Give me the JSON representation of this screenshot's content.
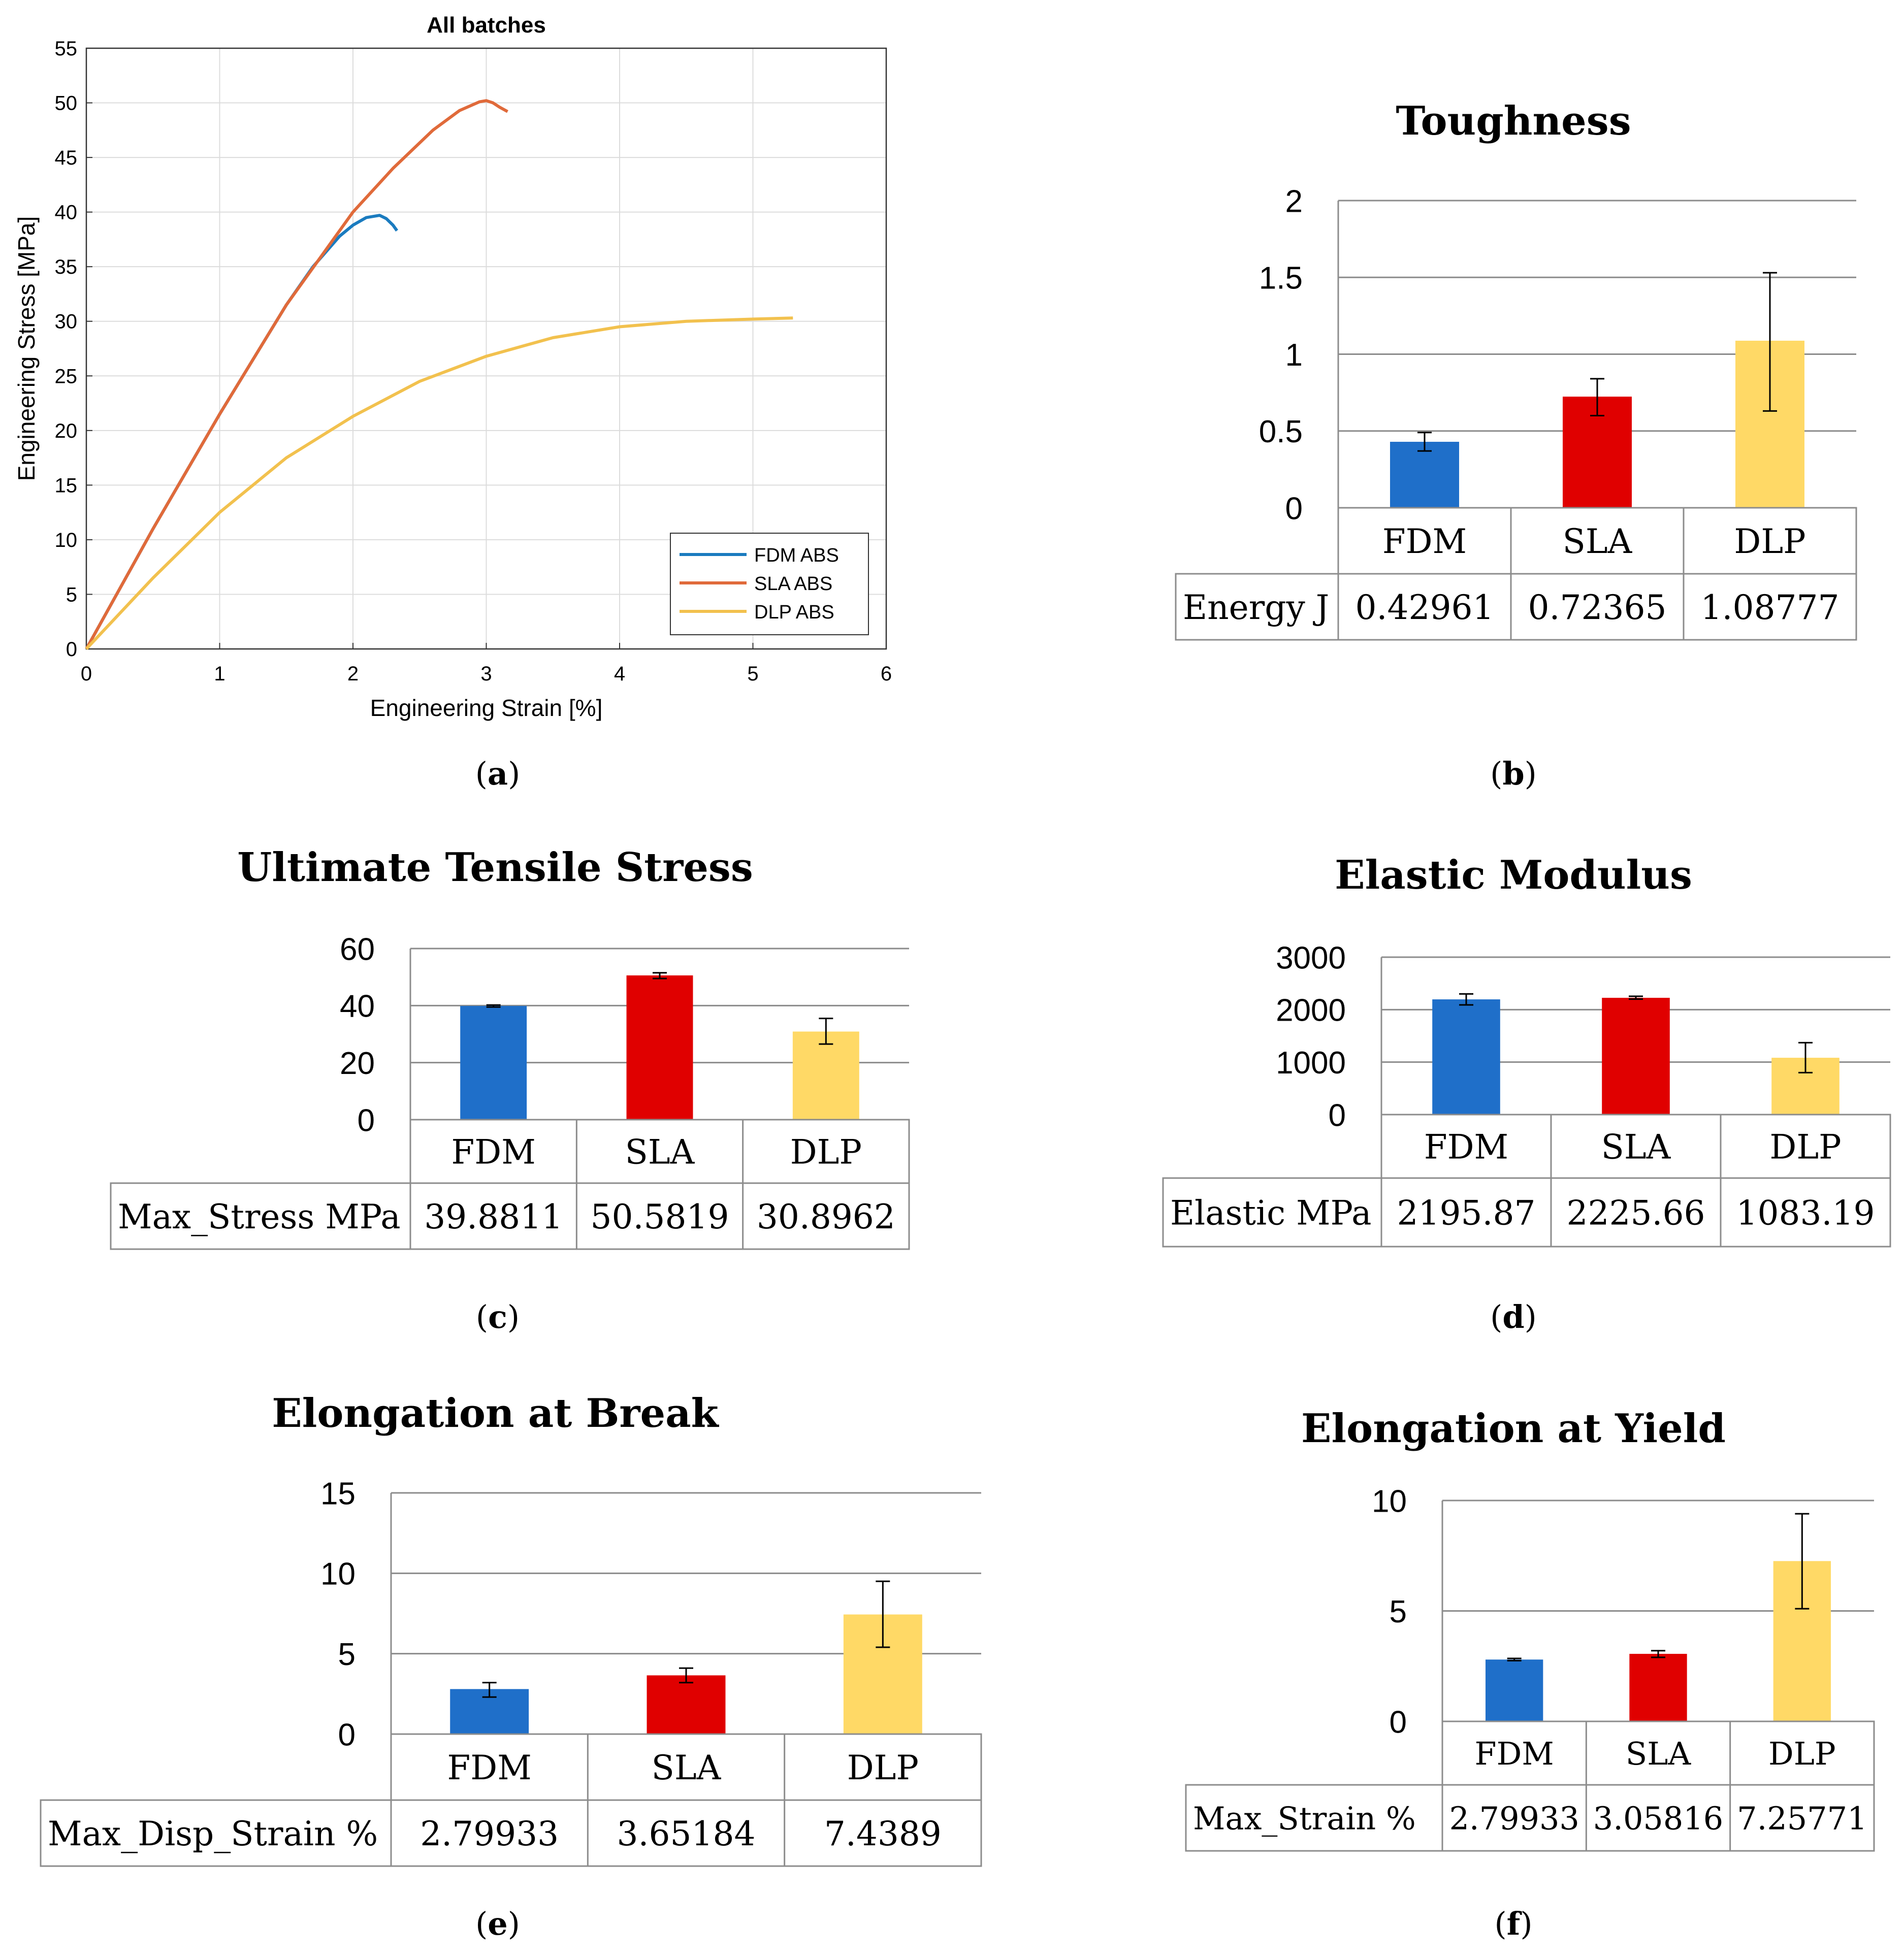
{
  "chart_data": [
    {
      "type": "line",
      "title": "All batches",
      "xlabel": "Engineering Strain [%]",
      "ylabel": "Engineering Stress [MPa]",
      "xlim": [
        0,
        6
      ],
      "ylim": [
        0,
        55
      ],
      "xticks": [
        "0",
        "1",
        "2",
        "3",
        "4",
        "5",
        "6"
      ],
      "yticks": [
        "0",
        "5",
        "10",
        "15",
        "20",
        "25",
        "30",
        "35",
        "40",
        "45",
        "50",
        "55"
      ],
      "grid": true,
      "legend_position": "bottom-right",
      "caption": "a",
      "series": [
        {
          "name": "FDM ABS",
          "color": "#1a7bbf",
          "x": [
            0,
            0.5,
            1.0,
            1.5,
            1.7,
            1.9,
            2.0,
            2.1,
            2.2,
            2.25,
            2.3,
            2.33
          ],
          "y": [
            0,
            11,
            21.5,
            31.5,
            35,
            37.8,
            38.8,
            39.5,
            39.7,
            39.4,
            38.8,
            38.3
          ]
        },
        {
          "name": "SLA ABS",
          "color": "#e06a3a",
          "x": [
            0,
            0.5,
            1.0,
            1.5,
            2.0,
            2.3,
            2.6,
            2.8,
            2.95,
            3.0,
            3.05,
            3.1,
            3.16
          ],
          "y": [
            0,
            11,
            21.5,
            31.5,
            40,
            44,
            47.5,
            49.3,
            50.1,
            50.2,
            50.0,
            49.6,
            49.2
          ]
        },
        {
          "name": "DLP ABS",
          "color": "#f2c14e",
          "x": [
            0,
            0.5,
            1.0,
            1.5,
            2.0,
            2.5,
            3.0,
            3.5,
            4.0,
            4.5,
            5.0,
            5.3
          ],
          "y": [
            0,
            6.5,
            12.5,
            17.5,
            21.3,
            24.5,
            26.8,
            28.5,
            29.5,
            30.0,
            30.2,
            30.3
          ]
        }
      ]
    },
    {
      "type": "bar",
      "title": "Toughness",
      "caption": "b",
      "categories": [
        "FDM",
        "SLA",
        "DLP"
      ],
      "colors": [
        "#1f6fc9",
        "#e00000",
        "#ffd966"
      ],
      "values": [
        0.42961,
        0.72365,
        1.08777
      ],
      "error_low": [
        0.37,
        0.6,
        0.63
      ],
      "error_high": [
        0.49,
        0.84,
        1.53
      ],
      "ylim": [
        0,
        2
      ],
      "yticks": [
        "0",
        "0.5",
        "1",
        "1.5",
        "2"
      ],
      "ytick_values": [
        0,
        0.5,
        1,
        1.5,
        2
      ],
      "row_label": "Energy J",
      "row_values": [
        "0.42961",
        "0.72365",
        "1.08777"
      ]
    },
    {
      "type": "bar",
      "title": "Ultimate Tensile Stress",
      "caption": "c",
      "categories": [
        "FDM",
        "SLA",
        "DLP"
      ],
      "colors": [
        "#1f6fc9",
        "#e00000",
        "#ffd966"
      ],
      "values": [
        39.8811,
        50.5819,
        30.8962
      ],
      "error_low": [
        39.5,
        49.5,
        26.5
      ],
      "error_high": [
        40.2,
        51.5,
        35.5
      ],
      "ylim": [
        0,
        60
      ],
      "yticks": [
        "0",
        "20",
        "40",
        "60"
      ],
      "ytick_values": [
        0,
        20,
        40,
        60
      ],
      "row_label": "Max_Stress MPa",
      "row_values": [
        "39.8811",
        "50.5819",
        "30.8962"
      ]
    },
    {
      "type": "bar",
      "title": "Elastic Modulus",
      "caption": "d",
      "categories": [
        "FDM",
        "SLA",
        "DLP"
      ],
      "colors": [
        "#1f6fc9",
        "#e00000",
        "#ffd966"
      ],
      "values": [
        2195.87,
        2225.66,
        1083.19
      ],
      "error_low": [
        2090,
        2200,
        800
      ],
      "error_high": [
        2300,
        2255,
        1370
      ],
      "ylim": [
        0,
        3000
      ],
      "yticks": [
        "0",
        "1000",
        "2000",
        "3000"
      ],
      "ytick_values": [
        0,
        1000,
        2000,
        3000
      ],
      "row_label": "Elastic MPa",
      "row_values": [
        "2195.87",
        "2225.66",
        "1083.19"
      ]
    },
    {
      "type": "bar",
      "title": "Elongation at Break",
      "caption": "e",
      "categories": [
        "FDM",
        "SLA",
        "DLP"
      ],
      "colors": [
        "#1f6fc9",
        "#e00000",
        "#ffd966"
      ],
      "values": [
        2.79933,
        3.65184,
        7.4389
      ],
      "error_low": [
        2.3,
        3.2,
        5.4
      ],
      "error_high": [
        3.2,
        4.1,
        9.5
      ],
      "ylim": [
        0,
        15
      ],
      "yticks": [
        "0",
        "5",
        "10",
        "15"
      ],
      "ytick_values": [
        0,
        5,
        10,
        15
      ],
      "row_label": "Max_Disp_Strain %",
      "row_values": [
        "2.79933",
        "3.65184",
        "7.4389"
      ]
    },
    {
      "type": "bar",
      "title": "Elongation at Yield",
      "caption": "f",
      "categories": [
        "FDM",
        "SLA",
        "DLP"
      ],
      "colors": [
        "#1f6fc9",
        "#e00000",
        "#ffd966"
      ],
      "values": [
        2.79933,
        3.05816,
        7.25771
      ],
      "error_low": [
        2.75,
        2.9,
        5.1
      ],
      "error_high": [
        2.85,
        3.2,
        9.4
      ],
      "ylim": [
        0,
        10
      ],
      "yticks": [
        "0",
        "5",
        "10"
      ],
      "ytick_values": [
        0,
        5,
        10
      ],
      "row_label": "Max_Strain %",
      "row_values": [
        "2.79933",
        "3.05816",
        "7.25771"
      ]
    }
  ]
}
